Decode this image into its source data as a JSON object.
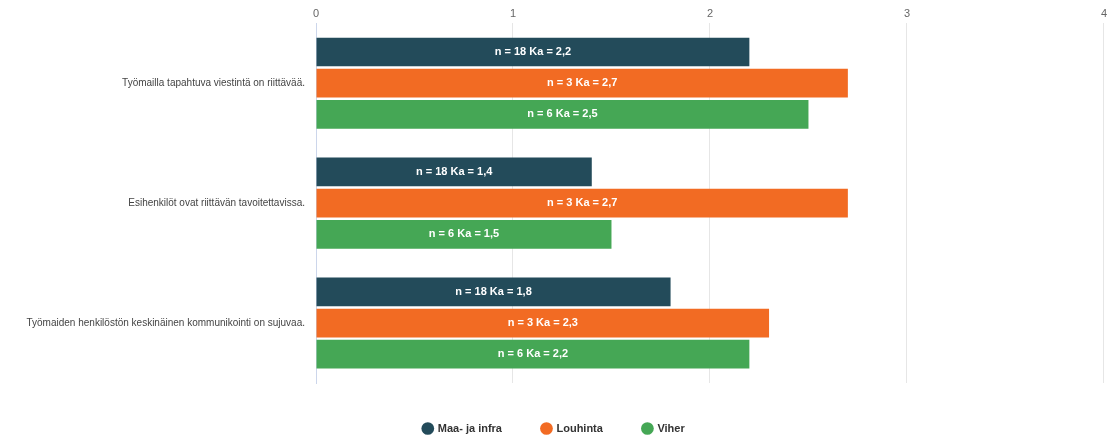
{
  "chart_data": {
    "type": "bar",
    "orientation": "horizontal",
    "categories": [
      "Työmailla tapahtuva viestintä on riittävää.",
      "Esihenkilöt ovat riittävän tavoitettavissa.",
      "Työmaiden henkilöstön keskinäinen kommunikointi on sujuvaa."
    ],
    "series": [
      {
        "name": "Maa- ja infra",
        "color": "#234b5a",
        "values": [
          2.2,
          1.4,
          1.8
        ],
        "value_labels": [
          "n = 18 Ka = 2,2",
          "n = 18 Ka = 1,4",
          "n = 18 Ka = 1,8"
        ]
      },
      {
        "name": "Louhinta",
        "color": "#f26b23",
        "values": [
          2.7,
          2.7,
          2.3
        ],
        "value_labels": [
          "n = 3 Ka = 2,7",
          "n = 3 Ka = 2,7",
          "n = 3 Ka = 2,3"
        ]
      },
      {
        "name": "Viher",
        "color": "#45a755",
        "values": [
          2.5,
          1.5,
          2.2
        ],
        "value_labels": [
          "n = 6 Ka = 2,5",
          "n = 6 Ka = 1,5",
          "n = 6 Ka = 2,2"
        ]
      }
    ],
    "xlim": [
      0,
      4
    ],
    "xticks": [
      0,
      1,
      2,
      3,
      4
    ],
    "grid": "x",
    "legend": "bottom",
    "marker": "circle"
  }
}
